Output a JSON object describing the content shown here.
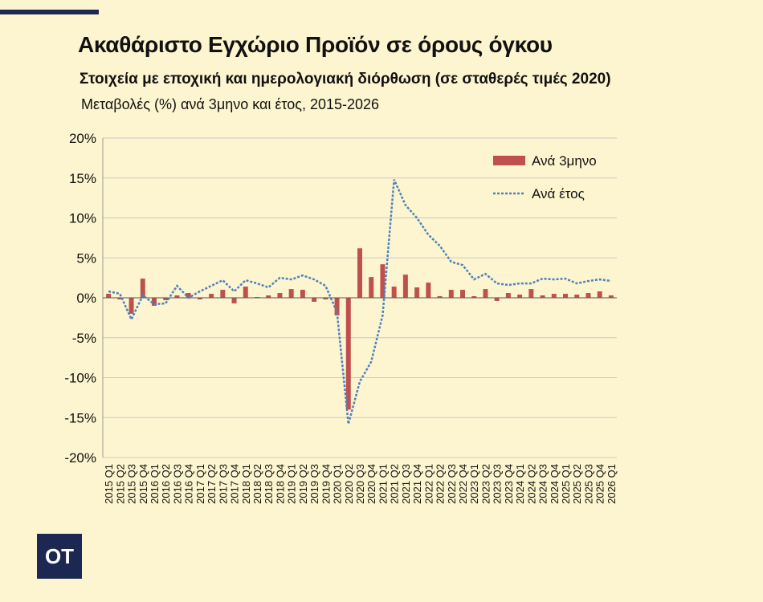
{
  "header": {
    "title": "Ακαθάριστο Εγχώριο Προϊόν σε όρους όγκου",
    "subtitle": "Στοιχεία με εποχική και ημερολογιακή διόρθωση (σε σταθερές τιμές 2020)",
    "subtitle2": "Μεταβολές (%) ανά 3μηνο και έτος, 2015-2026"
  },
  "logo": {
    "text": "OT"
  },
  "colors": {
    "bar": "#c0504d",
    "line": "#4f81bd",
    "grid": "#c9c9c9",
    "background": "#fdf5cf",
    "logo": "#1c2752"
  },
  "chart_data": {
    "type": "bar",
    "title": "Ακαθάριστο Εγχώριο Προϊόν σε όρους όγκου",
    "xlabel": "",
    "ylabel": "",
    "ylim": [
      -20,
      20
    ],
    "yticks": [
      "-20%",
      "-15%",
      "-10%",
      "-5%",
      "0%",
      "5%",
      "10%",
      "15%",
      "20%"
    ],
    "grid": true,
    "legend_position": "top-right",
    "categories": [
      "2015 Q1",
      "2015 Q2",
      "2015 Q3",
      "2015 Q4",
      "2016 Q1",
      "2016 Q2",
      "2016 Q3",
      "2016 Q4",
      "2017 Q1",
      "2017 Q2",
      "2017 Q3",
      "2017 Q4",
      "2018 Q1",
      "2018 Q2",
      "2018 Q3",
      "2018 Q4",
      "2019 Q1",
      "2019 Q2",
      "2019 Q3",
      "2019 Q4",
      "2020 Q1",
      "2020 Q2",
      "2020 Q3",
      "2020 Q4",
      "2021 Q1",
      "2021 Q2",
      "2021 Q3",
      "2021 Q4",
      "2022 Q1",
      "2022 Q2",
      "2022 Q3",
      "2022 Q4",
      "2023 Q1",
      "2023 Q2",
      "2023 Q3",
      "2023 Q4",
      "2024 Q1",
      "2024 Q2",
      "2024 Q3",
      "2024 Q4",
      "2025 Q1",
      "2025 Q2",
      "2025 Q3",
      "2025 Q4",
      "2026 Q1"
    ],
    "series": [
      {
        "name": "Ανά 3μηνο",
        "type": "bar",
        "values": [
          0.5,
          -0.2,
          -2.0,
          2.4,
          -1.0,
          -0.3,
          0.3,
          0.6,
          -0.2,
          0.5,
          1.0,
          -0.7,
          1.4,
          0.1,
          0.3,
          0.6,
          1.1,
          1.0,
          -0.5,
          -0.2,
          -2.2,
          -14.0,
          6.2,
          2.6,
          4.2,
          1.4,
          2.9,
          1.3,
          1.9,
          0.2,
          1.0,
          1.0,
          0.2,
          1.1,
          -0.4,
          0.6,
          0.4,
          1.1,
          0.3,
          0.5,
          0.5,
          0.4,
          0.6,
          0.8,
          0.3
        ]
      },
      {
        "name": "Ανά έτος",
        "type": "line",
        "values": [
          0.8,
          0.5,
          -2.7,
          0.3,
          -0.8,
          -0.7,
          1.5,
          0.0,
          0.8,
          1.5,
          2.2,
          0.8,
          2.2,
          1.8,
          1.3,
          2.5,
          2.3,
          2.8,
          2.3,
          1.5,
          -1.8,
          -15.8,
          -10.5,
          -8.0,
          -2.2,
          14.8,
          11.6,
          10.0,
          7.9,
          6.5,
          4.5,
          4.1,
          2.3,
          3.0,
          1.8,
          1.6,
          1.8,
          1.8,
          2.4,
          2.3,
          2.4,
          1.8,
          2.1,
          2.3,
          2.1
        ]
      }
    ]
  }
}
